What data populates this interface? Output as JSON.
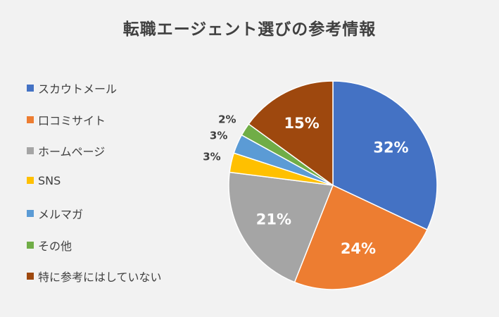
{
  "chart_data": {
    "type": "pie",
    "title": "転職エージェント選びの参考情報",
    "categories": [
      "スカウトメール",
      "口コミサイト",
      "ホームページ",
      "SNS",
      "メルマガ",
      "その他",
      "特に参考にはしていない"
    ],
    "values": [
      32,
      24,
      21,
      3,
      3,
      2,
      15
    ],
    "data_labels": [
      "32%",
      "24%",
      "21%",
      "3%",
      "3%",
      "2%",
      "15%"
    ],
    "colors": [
      "#4472c4",
      "#ed7d31",
      "#a5a5a5",
      "#ffc000",
      "#5b9bd5",
      "#70ad47",
      "#9e480e"
    ],
    "legend_position": "left"
  }
}
